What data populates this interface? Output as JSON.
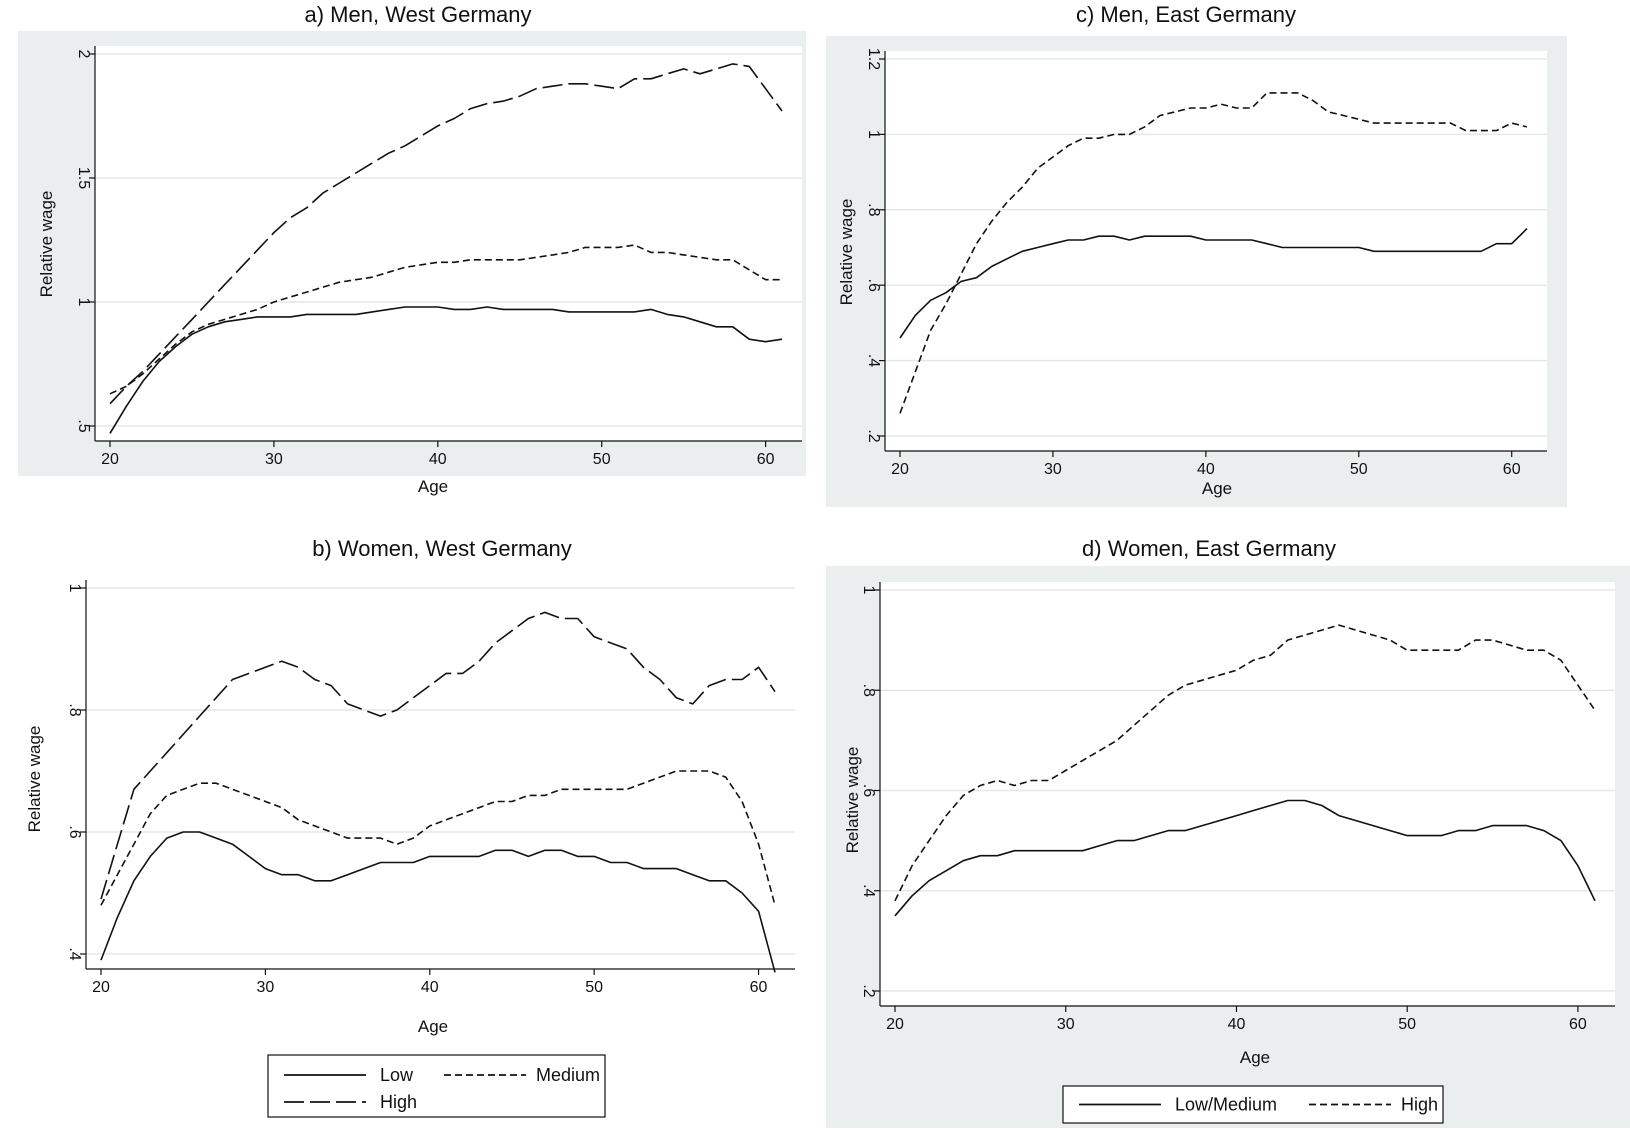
{
  "chart_data": [
    {
      "type": "line",
      "title": "a) Men, West Germany",
      "xlabel": "Age",
      "ylabel": "Relative wage",
      "xlim": [
        20,
        61
      ],
      "ylim": [
        0.5,
        2
      ],
      "xticks": [
        20,
        30,
        40,
        50,
        60
      ],
      "xtick_labels": [
        "20",
        "30",
        "40",
        "50",
        "60"
      ],
      "yticks": [
        0.5,
        1,
        1.5,
        2
      ],
      "ytick_labels": [
        ".5",
        "1",
        "1.5",
        "2"
      ],
      "grid": true,
      "x": [
        20,
        21,
        22,
        23,
        24,
        25,
        26,
        27,
        28,
        29,
        30,
        31,
        32,
        33,
        34,
        35,
        36,
        37,
        38,
        39,
        40,
        41,
        42,
        43,
        44,
        45,
        46,
        47,
        48,
        49,
        50,
        51,
        52,
        53,
        54,
        55,
        56,
        57,
        58,
        59,
        60,
        61
      ],
      "series": [
        {
          "name": "Low",
          "style": "solid",
          "values": [
            0.47,
            0.58,
            0.68,
            0.76,
            0.82,
            0.87,
            0.9,
            0.92,
            0.93,
            0.94,
            0.94,
            0.94,
            0.95,
            0.95,
            0.95,
            0.95,
            0.96,
            0.97,
            0.98,
            0.98,
            0.98,
            0.97,
            0.97,
            0.98,
            0.97,
            0.97,
            0.97,
            0.97,
            0.96,
            0.96,
            0.96,
            0.96,
            0.96,
            0.97,
            0.95,
            0.94,
            0.92,
            0.9,
            0.9,
            0.85,
            0.84,
            0.85
          ]
        },
        {
          "name": "Medium",
          "style": "dashed",
          "values": [
            0.63,
            0.66,
            0.71,
            0.77,
            0.83,
            0.88,
            0.91,
            0.93,
            0.95,
            0.97,
            1.0,
            1.02,
            1.04,
            1.06,
            1.08,
            1.09,
            1.1,
            1.12,
            1.14,
            1.15,
            1.16,
            1.16,
            1.17,
            1.17,
            1.17,
            1.17,
            1.18,
            1.19,
            1.2,
            1.22,
            1.22,
            1.22,
            1.23,
            1.2,
            1.2,
            1.19,
            1.18,
            1.17,
            1.17,
            1.13,
            1.09,
            1.09
          ]
        },
        {
          "name": "High",
          "style": "longdash",
          "values": [
            0.59,
            0.66,
            0.72,
            0.79,
            0.86,
            0.93,
            1.0,
            1.07,
            1.14,
            1.21,
            1.28,
            1.34,
            1.38,
            1.44,
            1.48,
            1.52,
            1.56,
            1.6,
            1.63,
            1.67,
            1.71,
            1.74,
            1.78,
            1.8,
            1.81,
            1.83,
            1.86,
            1.87,
            1.88,
            1.88,
            1.87,
            1.86,
            1.9,
            1.9,
            1.92,
            1.94,
            1.92,
            1.94,
            1.96,
            1.95,
            1.86,
            1.77
          ]
        }
      ]
    },
    {
      "type": "line",
      "title": "b) Women, West Germany",
      "xlabel": "Age",
      "ylabel": "Relative wage",
      "xlim": [
        20,
        61
      ],
      "ylim": [
        0.4,
        1
      ],
      "xticks": [
        20,
        30,
        40,
        50,
        60
      ],
      "xtick_labels": [
        "20",
        "30",
        "40",
        "50",
        "60"
      ],
      "yticks": [
        0.4,
        0.6,
        0.8,
        1
      ],
      "ytick_labels": [
        ".4",
        ".6",
        ".8",
        "1"
      ],
      "grid": true,
      "legend": {
        "position": "bottom",
        "entries": [
          "Low",
          "Medium",
          "High"
        ]
      },
      "x": [
        20,
        21,
        22,
        23,
        24,
        25,
        26,
        27,
        28,
        29,
        30,
        31,
        32,
        33,
        34,
        35,
        36,
        37,
        38,
        39,
        40,
        41,
        42,
        43,
        44,
        45,
        46,
        47,
        48,
        49,
        50,
        51,
        52,
        53,
        54,
        55,
        56,
        57,
        58,
        59,
        60,
        61
      ],
      "series": [
        {
          "name": "Low",
          "style": "solid",
          "values": [
            0.39,
            0.46,
            0.52,
            0.56,
            0.59,
            0.6,
            0.6,
            0.59,
            0.58,
            0.56,
            0.54,
            0.53,
            0.53,
            0.52,
            0.52,
            0.53,
            0.54,
            0.55,
            0.55,
            0.55,
            0.56,
            0.56,
            0.56,
            0.56,
            0.57,
            0.57,
            0.56,
            0.57,
            0.57,
            0.56,
            0.56,
            0.55,
            0.55,
            0.54,
            0.54,
            0.54,
            0.53,
            0.52,
            0.52,
            0.5,
            0.47,
            0.37
          ]
        },
        {
          "name": "Medium",
          "style": "dashed",
          "values": [
            0.48,
            0.53,
            0.58,
            0.63,
            0.66,
            0.67,
            0.68,
            0.68,
            0.67,
            0.66,
            0.65,
            0.64,
            0.62,
            0.61,
            0.6,
            0.59,
            0.59,
            0.59,
            0.58,
            0.59,
            0.61,
            0.62,
            0.63,
            0.64,
            0.65,
            0.65,
            0.66,
            0.66,
            0.67,
            0.67,
            0.67,
            0.67,
            0.67,
            0.68,
            0.69,
            0.7,
            0.7,
            0.7,
            0.69,
            0.65,
            0.58,
            0.48
          ]
        },
        {
          "name": "High",
          "style": "longdash",
          "values": [
            0.49,
            0.58,
            0.67,
            0.7,
            0.73,
            0.76,
            0.79,
            0.82,
            0.85,
            0.86,
            0.87,
            0.88,
            0.87,
            0.85,
            0.84,
            0.81,
            0.8,
            0.79,
            0.8,
            0.82,
            0.84,
            0.86,
            0.86,
            0.88,
            0.91,
            0.93,
            0.95,
            0.96,
            0.95,
            0.95,
            0.92,
            0.91,
            0.9,
            0.87,
            0.85,
            0.82,
            0.81,
            0.84,
            0.85,
            0.85,
            0.87,
            0.83
          ]
        }
      ]
    },
    {
      "type": "line",
      "title": "c) Men, East Germany",
      "xlabel": "Age",
      "ylabel": "Relative wage",
      "xlim": [
        20,
        61
      ],
      "ylim": [
        0.2,
        1.2
      ],
      "xticks": [
        20,
        30,
        40,
        50,
        60
      ],
      "xtick_labels": [
        "20",
        "30",
        "40",
        "50",
        "60"
      ],
      "yticks": [
        0.2,
        0.4,
        0.6,
        0.8,
        1,
        1.2
      ],
      "ytick_labels": [
        ".2",
        ".4",
        ".6",
        ".8",
        "1",
        "1.2"
      ],
      "grid": true,
      "x": [
        20,
        21,
        22,
        23,
        24,
        25,
        26,
        27,
        28,
        29,
        30,
        31,
        32,
        33,
        34,
        35,
        36,
        37,
        38,
        39,
        40,
        41,
        42,
        43,
        44,
        45,
        46,
        47,
        48,
        49,
        50,
        51,
        52,
        53,
        54,
        55,
        56,
        57,
        58,
        59,
        60,
        61
      ],
      "series": [
        {
          "name": "Low/Medium",
          "style": "solid",
          "values": [
            0.46,
            0.52,
            0.56,
            0.58,
            0.61,
            0.62,
            0.65,
            0.67,
            0.69,
            0.7,
            0.71,
            0.72,
            0.72,
            0.73,
            0.73,
            0.72,
            0.73,
            0.73,
            0.73,
            0.73,
            0.72,
            0.72,
            0.72,
            0.72,
            0.71,
            0.7,
            0.7,
            0.7,
            0.7,
            0.7,
            0.7,
            0.69,
            0.69,
            0.69,
            0.69,
            0.69,
            0.69,
            0.69,
            0.69,
            0.71,
            0.71,
            0.75
          ]
        },
        {
          "name": "High",
          "style": "dashed",
          "values": [
            0.26,
            0.37,
            0.48,
            0.55,
            0.63,
            0.71,
            0.77,
            0.82,
            0.86,
            0.91,
            0.94,
            0.97,
            0.99,
            0.99,
            1.0,
            1.0,
            1.02,
            1.05,
            1.06,
            1.07,
            1.07,
            1.08,
            1.07,
            1.07,
            1.11,
            1.11,
            1.11,
            1.09,
            1.06,
            1.05,
            1.04,
            1.03,
            1.03,
            1.03,
            1.03,
            1.03,
            1.03,
            1.01,
            1.01,
            1.01,
            1.03,
            1.02
          ]
        }
      ]
    },
    {
      "type": "line",
      "title": "d) Women, East Germany",
      "xlabel": "Age",
      "ylabel": "Relative wage",
      "xlim": [
        20,
        61
      ],
      "ylim": [
        0.2,
        1
      ],
      "xticks": [
        20,
        30,
        40,
        50,
        60
      ],
      "xtick_labels": [
        "20",
        "30",
        "40",
        "50",
        "60"
      ],
      "yticks": [
        0.2,
        0.4,
        0.6,
        0.8,
        1
      ],
      "ytick_labels": [
        ".2",
        ".4",
        ".6",
        ".8",
        "1"
      ],
      "grid": true,
      "legend": {
        "position": "bottom",
        "entries": [
          "Low/Medium",
          "High"
        ]
      },
      "x": [
        20,
        21,
        22,
        23,
        24,
        25,
        26,
        27,
        28,
        29,
        30,
        31,
        32,
        33,
        34,
        35,
        36,
        37,
        38,
        39,
        40,
        41,
        42,
        43,
        44,
        45,
        46,
        47,
        48,
        49,
        50,
        51,
        52,
        53,
        54,
        55,
        56,
        57,
        58,
        59,
        60,
        61
      ],
      "series": [
        {
          "name": "Low/Medium",
          "style": "solid",
          "values": [
            0.35,
            0.39,
            0.42,
            0.44,
            0.46,
            0.47,
            0.47,
            0.48,
            0.48,
            0.48,
            0.48,
            0.48,
            0.49,
            0.5,
            0.5,
            0.51,
            0.52,
            0.52,
            0.53,
            0.54,
            0.55,
            0.56,
            0.57,
            0.58,
            0.58,
            0.57,
            0.55,
            0.54,
            0.53,
            0.52,
            0.51,
            0.51,
            0.51,
            0.52,
            0.52,
            0.53,
            0.53,
            0.53,
            0.52,
            0.5,
            0.45,
            0.38
          ]
        },
        {
          "name": "High",
          "style": "dashed",
          "values": [
            0.38,
            0.45,
            0.5,
            0.55,
            0.59,
            0.61,
            0.62,
            0.61,
            0.62,
            0.62,
            0.64,
            0.66,
            0.68,
            0.7,
            0.73,
            0.76,
            0.79,
            0.81,
            0.82,
            0.83,
            0.84,
            0.86,
            0.87,
            0.9,
            0.91,
            0.92,
            0.93,
            0.92,
            0.91,
            0.9,
            0.88,
            0.88,
            0.88,
            0.88,
            0.9,
            0.9,
            0.89,
            0.88,
            0.88,
            0.86,
            0.81,
            0.76
          ]
        }
      ]
    }
  ],
  "styles": {
    "line_color": "#111111",
    "grid_color": "#e4e8eb",
    "panel_background": "#ebeeef",
    "plot_background": "#ffffff"
  }
}
